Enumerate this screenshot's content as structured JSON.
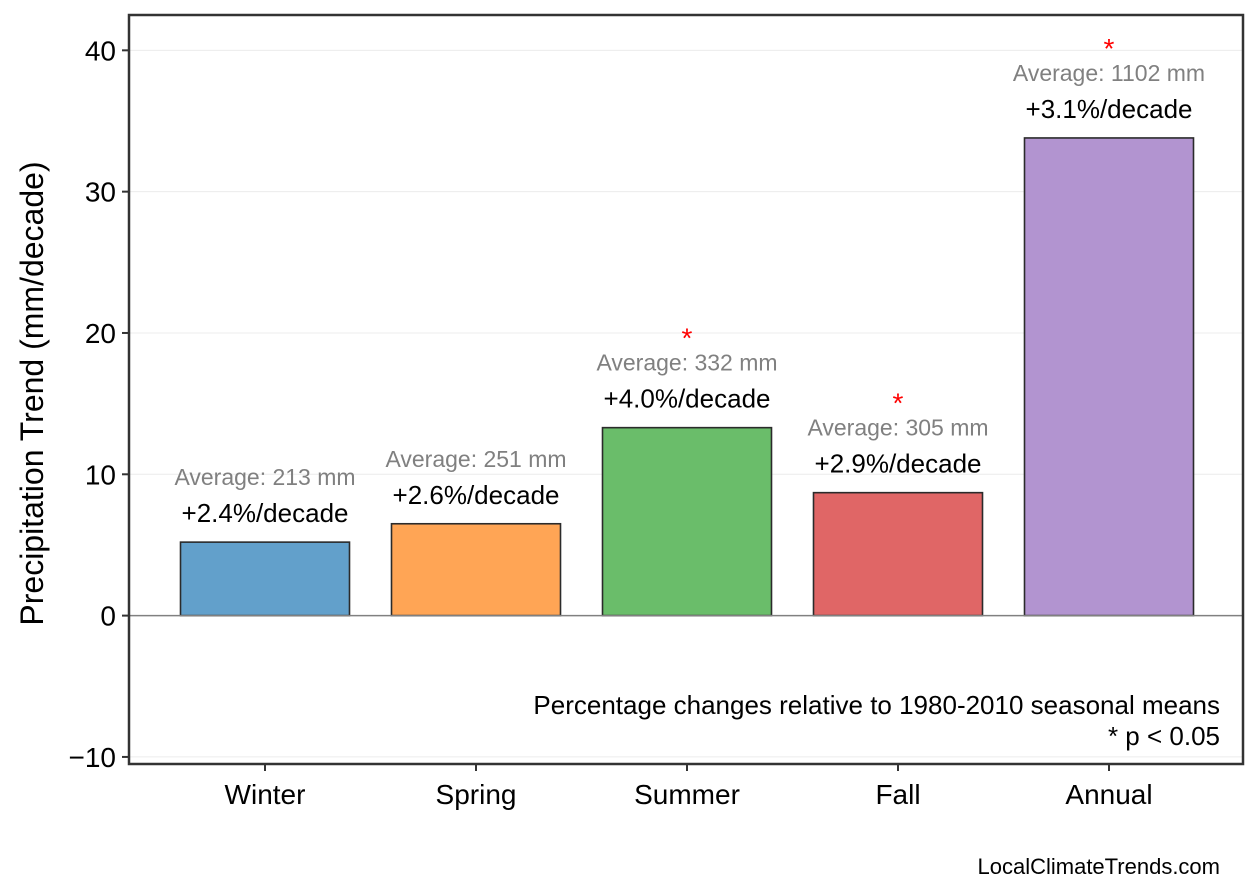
{
  "chart_data": {
    "type": "bar",
    "categories": [
      "Winter",
      "Spring",
      "Summer",
      "Fall",
      "Annual"
    ],
    "values": [
      5.2,
      6.5,
      13.3,
      8.7,
      33.8
    ],
    "averages": [
      "Average: 213 mm",
      "Average: 251 mm",
      "Average: 332 mm",
      "Average: 305 mm",
      "Average: 1102 mm"
    ],
    "percent_changes": [
      "+2.4%/decade",
      "+2.6%/decade",
      "+4.0%/decade",
      "+2.9%/decade",
      "+3.1%/decade"
    ],
    "significant": [
      false,
      false,
      true,
      true,
      true
    ],
    "significance_marker": "*",
    "colors": [
      "#62a0cb",
      "#ffa555",
      "#6abd6a",
      "#e06666",
      "#b294d0"
    ],
    "ylabel": "Precipitation Trend (mm/decade)",
    "xlabel": "",
    "ylim": [
      -10.5,
      42.5
    ],
    "yticks": [
      -10,
      0,
      10,
      20,
      30,
      40
    ],
    "ytick_labels": [
      "−10",
      "0",
      "10",
      "20",
      "30",
      "40"
    ],
    "grid": true,
    "notes": [
      "Percentage changes relative to 1980-2010 seasonal means",
      "* p < 0.05"
    ]
  },
  "credit": "LocalClimateTrends.com"
}
